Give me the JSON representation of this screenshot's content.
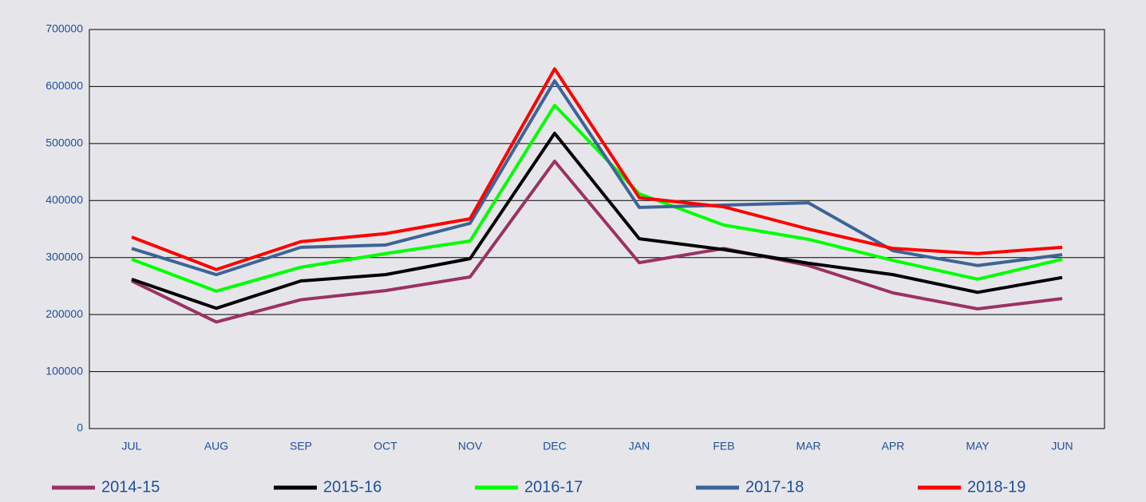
{
  "chart_data": {
    "type": "line",
    "categories": [
      "JUL",
      "AUG",
      "SEP",
      "OCT",
      "NOV",
      "DEC",
      "JAN",
      "FEB",
      "MAR",
      "APR",
      "MAY",
      "JUN"
    ],
    "series": [
      {
        "name": "2014-15",
        "color": "#9b3263",
        "values": [
          259000,
          187000,
          226000,
          242000,
          266000,
          469000,
          291000,
          316000,
          286000,
          238000,
          210000,
          228000
        ]
      },
      {
        "name": "2015-16",
        "color": "#000000",
        "values": [
          262000,
          211000,
          259000,
          270000,
          298000,
          518000,
          333000,
          314000,
          290000,
          270000,
          239000,
          265000
        ]
      },
      {
        "name": "2016-17",
        "color": "#00ff00",
        "values": [
          297000,
          241000,
          283000,
          307000,
          329000,
          567000,
          412000,
          357000,
          332000,
          295000,
          262000,
          297000
        ]
      },
      {
        "name": "2017-18",
        "color": "#3d6496",
        "values": [
          316000,
          270000,
          318000,
          322000,
          360000,
          610000,
          388000,
          392000,
          396000,
          312000,
          286000,
          305000
        ]
      },
      {
        "name": "2018-19",
        "color": "#ff0000",
        "values": [
          336000,
          279000,
          328000,
          342000,
          368000,
          631000,
          405000,
          389000,
          350000,
          316000,
          307000,
          318000
        ]
      }
    ],
    "ylim": [
      0,
      700000
    ],
    "yticks": [
      0,
      100000,
      200000,
      300000,
      400000,
      500000,
      600000,
      700000
    ],
    "grid": true,
    "legend": "bottom"
  }
}
